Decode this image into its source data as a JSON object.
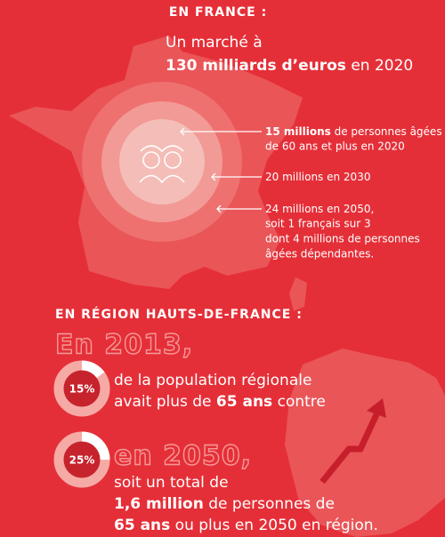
{
  "france": {
    "heading": "EN FRANCE :",
    "market": {
      "line1": "Un marché à",
      "bold": "130 milliards d’euros",
      "rest": " en 2020"
    },
    "notes": [
      {
        "bold": "15 millions",
        "rest": " de personnes âgées",
        "lines": [
          "de 60 ans et plus en 2020"
        ]
      },
      {
        "bold": "",
        "rest": "20 millions en 2030",
        "lines": []
      },
      {
        "bold": "",
        "rest": "24 millions en 2050,",
        "lines": [
          "soit 1 français sur 3",
          "dont 4 millions de personnes",
          "âgées dépendantes."
        ]
      }
    ]
  },
  "region": {
    "heading": "EN RÉGION HAUTS-DE-FRANCE :",
    "year1": "En 2013,",
    "donut1": {
      "value": 15,
      "value_label": "15%"
    },
    "text1": {
      "line1": "de la population régionale",
      "pre": "avait plus de ",
      "bold": "65 ans",
      "post": " contre"
    },
    "donut2": {
      "value": 25,
      "value_label": "25%"
    },
    "year2": "en 2050,",
    "text2": {
      "line1": "soit un total de",
      "bold1": "1,6 million",
      "post1": " de personnes de",
      "bold2": "65 ans",
      "post2": " ou plus en 2050 en région."
    }
  }
}
